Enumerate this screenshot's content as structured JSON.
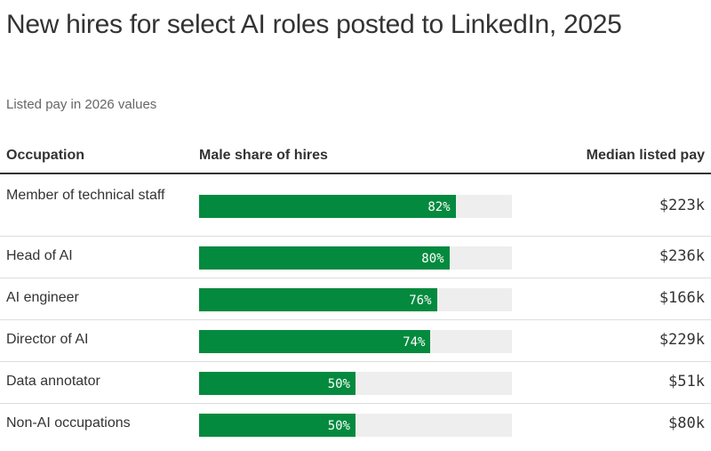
{
  "chart_data": {
    "type": "bar",
    "title": "New hires for select AI roles posted to LinkedIn, 2025",
    "subtitle": "Listed pay in 2026 values",
    "columns": [
      "Occupation",
      "Male share of hires",
      "Median listed pay"
    ],
    "xlim": [
      0,
      100
    ],
    "categories": [
      "Member of technical staff",
      "Head of AI",
      "AI engineer",
      "Director of AI",
      "Data annotator",
      "Non-AI occupations"
    ],
    "series": [
      {
        "name": "Male share of hires",
        "values": [
          82,
          80,
          76,
          74,
          50,
          50
        ],
        "labels": [
          "82%",
          "80%",
          "76%",
          "74%",
          "50%",
          "50%"
        ]
      }
    ],
    "median_listed_pay": [
      "$223k",
      "$236k",
      "$166k",
      "$229k",
      "$51k",
      "$80k"
    ],
    "colors": {
      "bar": "#048a3e",
      "track": "#eeeeee"
    },
    "grid": false
  }
}
